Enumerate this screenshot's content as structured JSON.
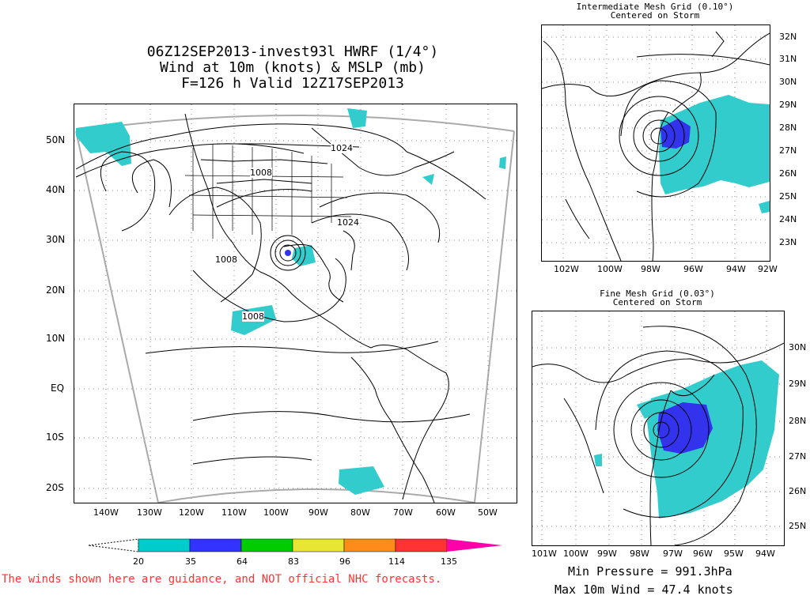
{
  "main_title": {
    "line1": "06Z12SEP2013-invest93l HWRF (1/4°)",
    "line2": "Wind at 10m (knots) & MSLP (mb)",
    "line3": "F=126 h Valid 12Z17SEP2013"
  },
  "main_map": {
    "lat_labels": [
      "50N",
      "40N",
      "30N",
      "20N",
      "10N",
      "EQ",
      "10S",
      "20S"
    ],
    "lon_labels": [
      "140W",
      "130W",
      "120W",
      "110W",
      "100W",
      "90W",
      "80W",
      "70W",
      "60W",
      "50W"
    ],
    "contour_labels": [
      "1024",
      "1008",
      "1024",
      "1008",
      "1008"
    ]
  },
  "intermediate_panel": {
    "title": "Intermediate Mesh Grid (0.10°)",
    "subtitle": "Centered on Storm",
    "lat_labels": [
      "32N",
      "31N",
      "30N",
      "29N",
      "28N",
      "27N",
      "26N",
      "25N",
      "24N",
      "23N"
    ],
    "lon_labels": [
      "102W",
      "100W",
      "98W",
      "96W",
      "94W",
      "92W"
    ]
  },
  "fine_panel": {
    "title": "Fine Mesh Grid (0.03°)",
    "subtitle": "Centered on Storm",
    "lat_labels": [
      "30N",
      "29N",
      "28N",
      "27N",
      "26N",
      "25N"
    ],
    "lon_labels": [
      "101W",
      "100W",
      "99W",
      "98W",
      "97W",
      "96W",
      "95W",
      "94W"
    ]
  },
  "legend": {
    "labels": [
      "20",
      "35",
      "64",
      "83",
      "96",
      "114",
      "135"
    ],
    "colors": [
      "#00cccc",
      "#3333ff",
      "#00cc00",
      "#e6e633",
      "#ff8c1a",
      "#ff3333",
      "#ff00aa"
    ]
  },
  "colors": {
    "wind_20": "#33cccc",
    "wind_35": "#3333ee",
    "disclaimer": "#ff3333"
  },
  "disclaimer": "The winds shown here are guidance, and NOT official NHC forecasts.",
  "stats": {
    "min_pressure": "Min Pressure = 991.3hPa",
    "max_wind": "Max 10m Wind = 47.4 knots"
  }
}
